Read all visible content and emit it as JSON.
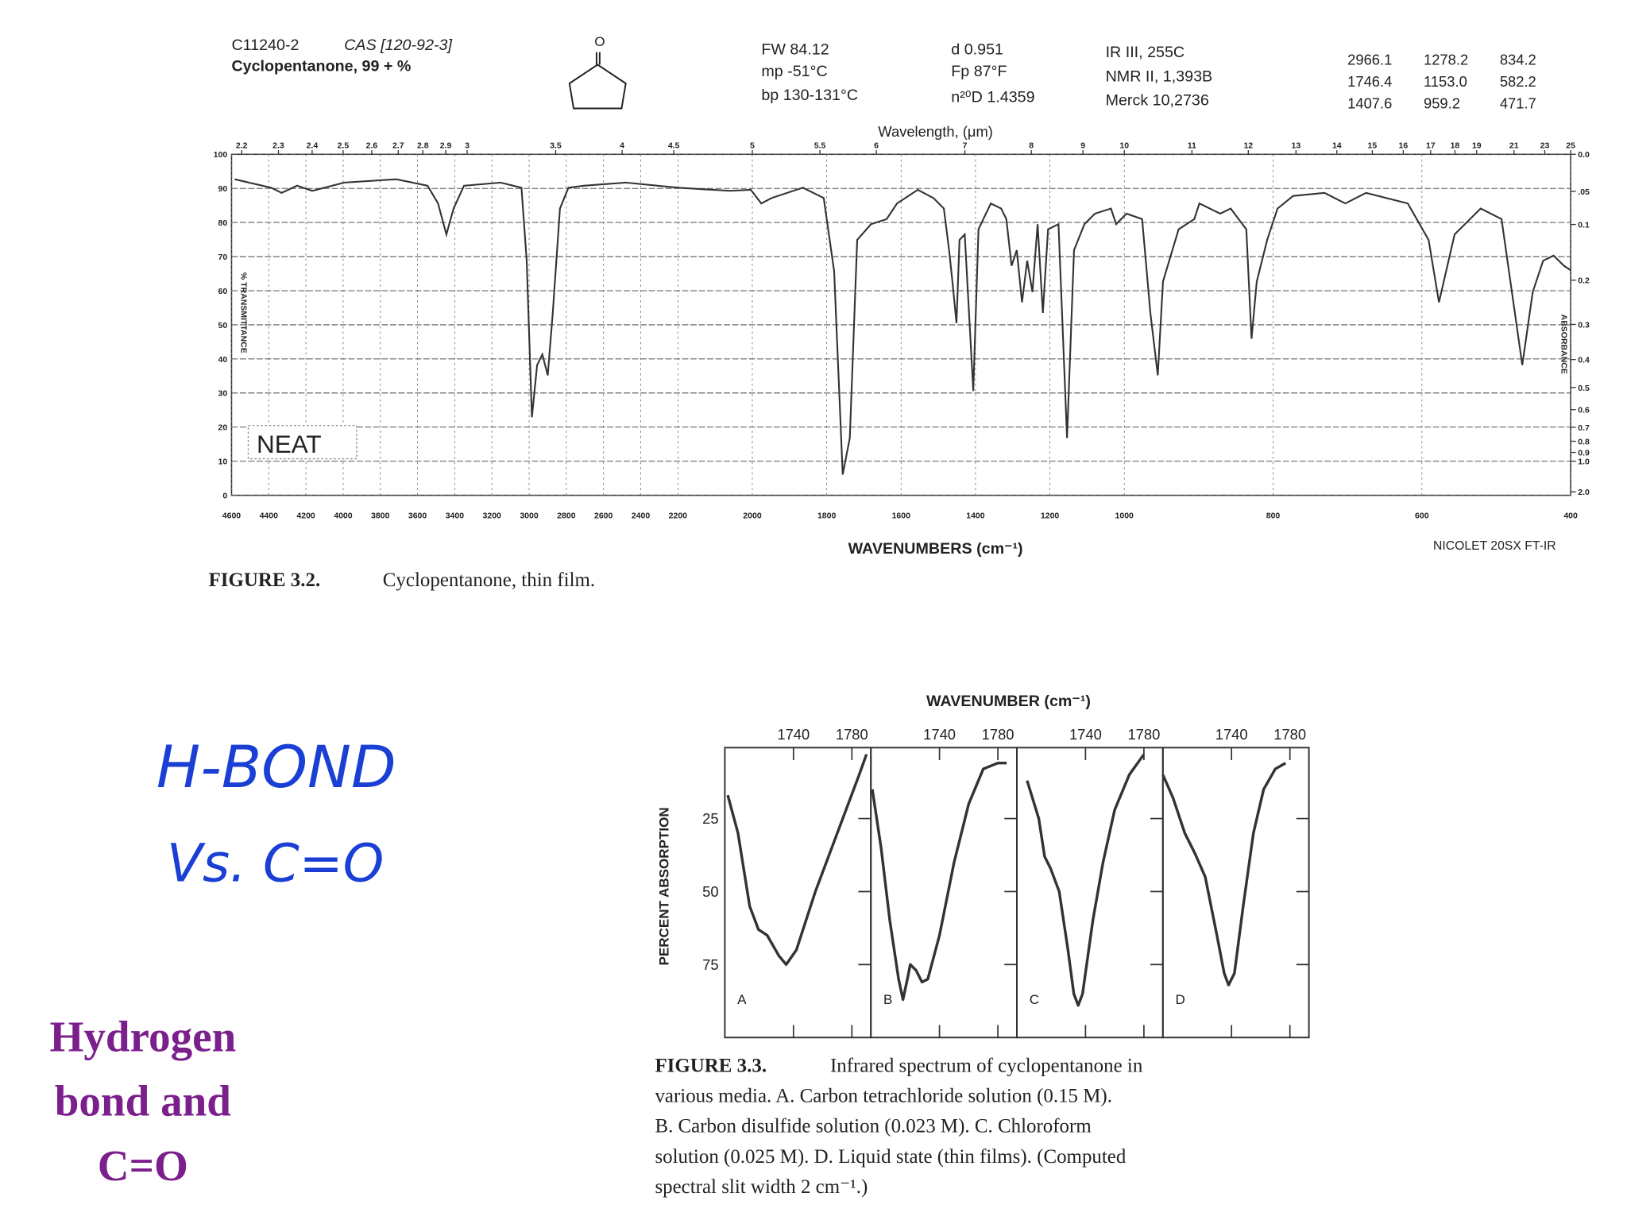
{
  "header": {
    "catalog": "C11240-2",
    "cas": "CAS [120-92-3]",
    "name": "Cyclopentanone, 99 + %",
    "structure_atom": "O",
    "props1": [
      "FW 84.12",
      "mp -51°C",
      "bp 130-131°C"
    ],
    "props2": [
      "d 0.951",
      "Fp 87°F",
      "n²⁰D 1.4359"
    ],
    "refs": [
      "IR III, 255C",
      "NMR II, 1,393B",
      "Merck 10,2736"
    ],
    "peaks": [
      [
        "2966.1",
        "1278.2",
        "834.2"
      ],
      [
        "1746.4",
        "1153.0",
        "582.2"
      ],
      [
        "1407.6",
        "959.2",
        "471.7"
      ]
    ]
  },
  "chart_data": [
    {
      "type": "line",
      "x2_label": "Wavelength, (μm)",
      "xlabel": "WAVENUMBERS (cm⁻¹)",
      "ylabel": "% TRANSMITTANCE",
      "y2label": "ABSORBANCE",
      "instrument": "NICOLET 20SX FT-IR",
      "annotation": "NEAT",
      "color": "#333333",
      "grid": true,
      "xlim": [
        4600,
        400
      ],
      "x_scale_breaks": [
        2200,
        1000
      ],
      "xticks": [
        4600,
        4400,
        4200,
        4000,
        3800,
        3600,
        3400,
        3200,
        3000,
        2800,
        2600,
        2400,
        2200,
        2000,
        1800,
        1600,
        1400,
        1200,
        1000,
        800,
        600,
        400
      ],
      "x2ticks": [
        2.2,
        2.3,
        2.4,
        2.5,
        2.6,
        2.7,
        2.8,
        2.9,
        3,
        3.5,
        4,
        4.5,
        5,
        5.5,
        6,
        7,
        8,
        9,
        10,
        11,
        12,
        13,
        14,
        15,
        16,
        17,
        18,
        19,
        21,
        23,
        25
      ],
      "ylim": [
        0,
        100
      ],
      "yticks": [
        0,
        10,
        20,
        30,
        40,
        50,
        60,
        70,
        80,
        90,
        100
      ],
      "y2_scale": "absorbance",
      "y2ticks": [
        {
          "value": 0,
          "label": "0.0"
        },
        {
          "value": 0.05,
          "label": ".05"
        },
        0.1,
        0.2,
        0.3,
        0.4,
        0.5,
        0.6,
        0.7,
        0.8,
        0.9,
        {
          "value": 1,
          "label": "1.0"
        },
        {
          "value": 2,
          "label": "2.0"
        }
      ],
      "x": [
        4583,
        4387,
        4331,
        4248,
        4166,
        3994,
        3714,
        3546,
        3490,
        3445,
        3406,
        3350,
        3154,
        3041,
        3013,
        2985,
        2957,
        2929,
        2900,
        2873,
        2834,
        2789,
        2705,
        2480,
        2200,
        2060,
        2004,
        1976,
        1948,
        1864,
        1808,
        1780,
        1757,
        1738,
        1718,
        1681,
        1639,
        1611,
        1555,
        1513,
        1485,
        1471,
        1462,
        1451,
        1443,
        1429,
        1406,
        1392,
        1359,
        1331,
        1317,
        1303,
        1289,
        1275,
        1261,
        1247,
        1233,
        1219,
        1205,
        1177,
        1154,
        1135,
        1107,
        1079,
        1036,
        1022,
        997,
        976,
        965,
        955,
        948,
        927,
        906,
        899,
        885,
        871,
        857,
        836,
        829,
        822,
        808,
        794,
        773,
        731,
        703,
        675,
        619,
        591,
        577,
        556,
        521,
        493,
        465,
        451,
        437,
        423,
        409,
        400
      ],
      "values": [
        92.7,
        90.2,
        88.7,
        90.8,
        89.3,
        91.7,
        92.7,
        90.8,
        85.6,
        76.5,
        84.1,
        90.8,
        91.7,
        90.2,
        68.8,
        22.9,
        38.2,
        41.3,
        35.2,
        53.5,
        84.1,
        90.2,
        90.8,
        91.7,
        90.2,
        89.3,
        89.6,
        85.6,
        87.2,
        90.2,
        87.2,
        65.7,
        6.1,
        16.8,
        74.9,
        79.5,
        81.0,
        85.6,
        89.6,
        87.2,
        84.1,
        71.9,
        62.7,
        50.5,
        74.9,
        76.5,
        30.6,
        78.0,
        85.6,
        84.1,
        81.0,
        67.3,
        71.9,
        56.6,
        68.8,
        59.6,
        79.5,
        53.5,
        78.0,
        79.5,
        16.8,
        71.9,
        79.5,
        82.6,
        84.1,
        79.5,
        82.6,
        81.0,
        53.5,
        35.2,
        62.7,
        78.0,
        81.0,
        85.6,
        84.1,
        82.6,
        84.1,
        78.0,
        45.9,
        62.7,
        74.9,
        84.1,
        87.8,
        88.7,
        85.6,
        88.7,
        85.6,
        74.9,
        56.6,
        76.5,
        84.1,
        81.0,
        38.2,
        59.6,
        68.8,
        70.3,
        67.3,
        66
      ]
    },
    {
      "type": "line",
      "title": "WAVENUMBER (cm⁻¹)",
      "ylabel": "PERCENT ABSORPTION",
      "xlim": [
        1693,
        1793
      ],
      "xticks": [
        1740,
        1780
      ],
      "ylim": [
        100,
        0
      ],
      "yticks": [
        25,
        50,
        75
      ],
      "series": [
        {
          "name": "A",
          "color": "#333333",
          "x": [
            1695,
            1702,
            1710,
            1716,
            1722,
            1730,
            1735,
            1742,
            1755,
            1770,
            1785,
            1790
          ],
          "values": [
            17,
            30,
            55,
            63,
            65,
            72,
            75,
            70,
            50,
            30,
            10,
            3
          ]
        },
        {
          "name": "B",
          "color": "#333333",
          "x": [
            1694,
            1700,
            1706,
            1712,
            1715,
            1718,
            1720,
            1724,
            1728,
            1732,
            1740,
            1750,
            1760,
            1770,
            1780,
            1786
          ],
          "values": [
            15,
            35,
            60,
            80,
            87,
            80,
            75,
            77,
            81,
            80,
            65,
            40,
            20,
            8,
            6,
            6
          ]
        },
        {
          "name": "C",
          "color": "#333333",
          "x": [
            1700,
            1708,
            1712,
            1716,
            1722,
            1728,
            1732,
            1735,
            1738,
            1745,
            1752,
            1760,
            1770,
            1780
          ],
          "values": [
            12,
            25,
            38,
            42,
            50,
            70,
            85,
            89,
            85,
            60,
            40,
            22,
            10,
            3
          ]
        },
        {
          "name": "D",
          "color": "#333333",
          "x": [
            1693,
            1700,
            1708,
            1715,
            1722,
            1730,
            1735,
            1738,
            1742,
            1748,
            1755,
            1762,
            1770,
            1777
          ],
          "values": [
            10,
            18,
            30,
            37,
            45,
            65,
            78,
            82,
            78,
            55,
            30,
            15,
            8,
            6
          ]
        }
      ]
    }
  ],
  "figure_3_2_caption": {
    "label": "FIGURE 3.2.",
    "text": "Cyclopentanone, thin film."
  },
  "figure_3_3_caption": {
    "label": "FIGURE 3.3.",
    "lines": [
      "Infrared spectrum of cyclopentanone in",
      "various media. A. Carbon tetrachloride solution (0.15 M).",
      "B. Carbon disulfide solution (0.023 M). C. Chloroform",
      "solution (0.025 M). D. Liquid state (thin films). (Computed",
      "spectral slit width 2 cm⁻¹.)"
    ]
  },
  "handwriting": [
    "H-BOND",
    "Vs. C=O"
  ],
  "side_label": [
    "Hydrogen",
    "bond and",
    "C=O"
  ]
}
